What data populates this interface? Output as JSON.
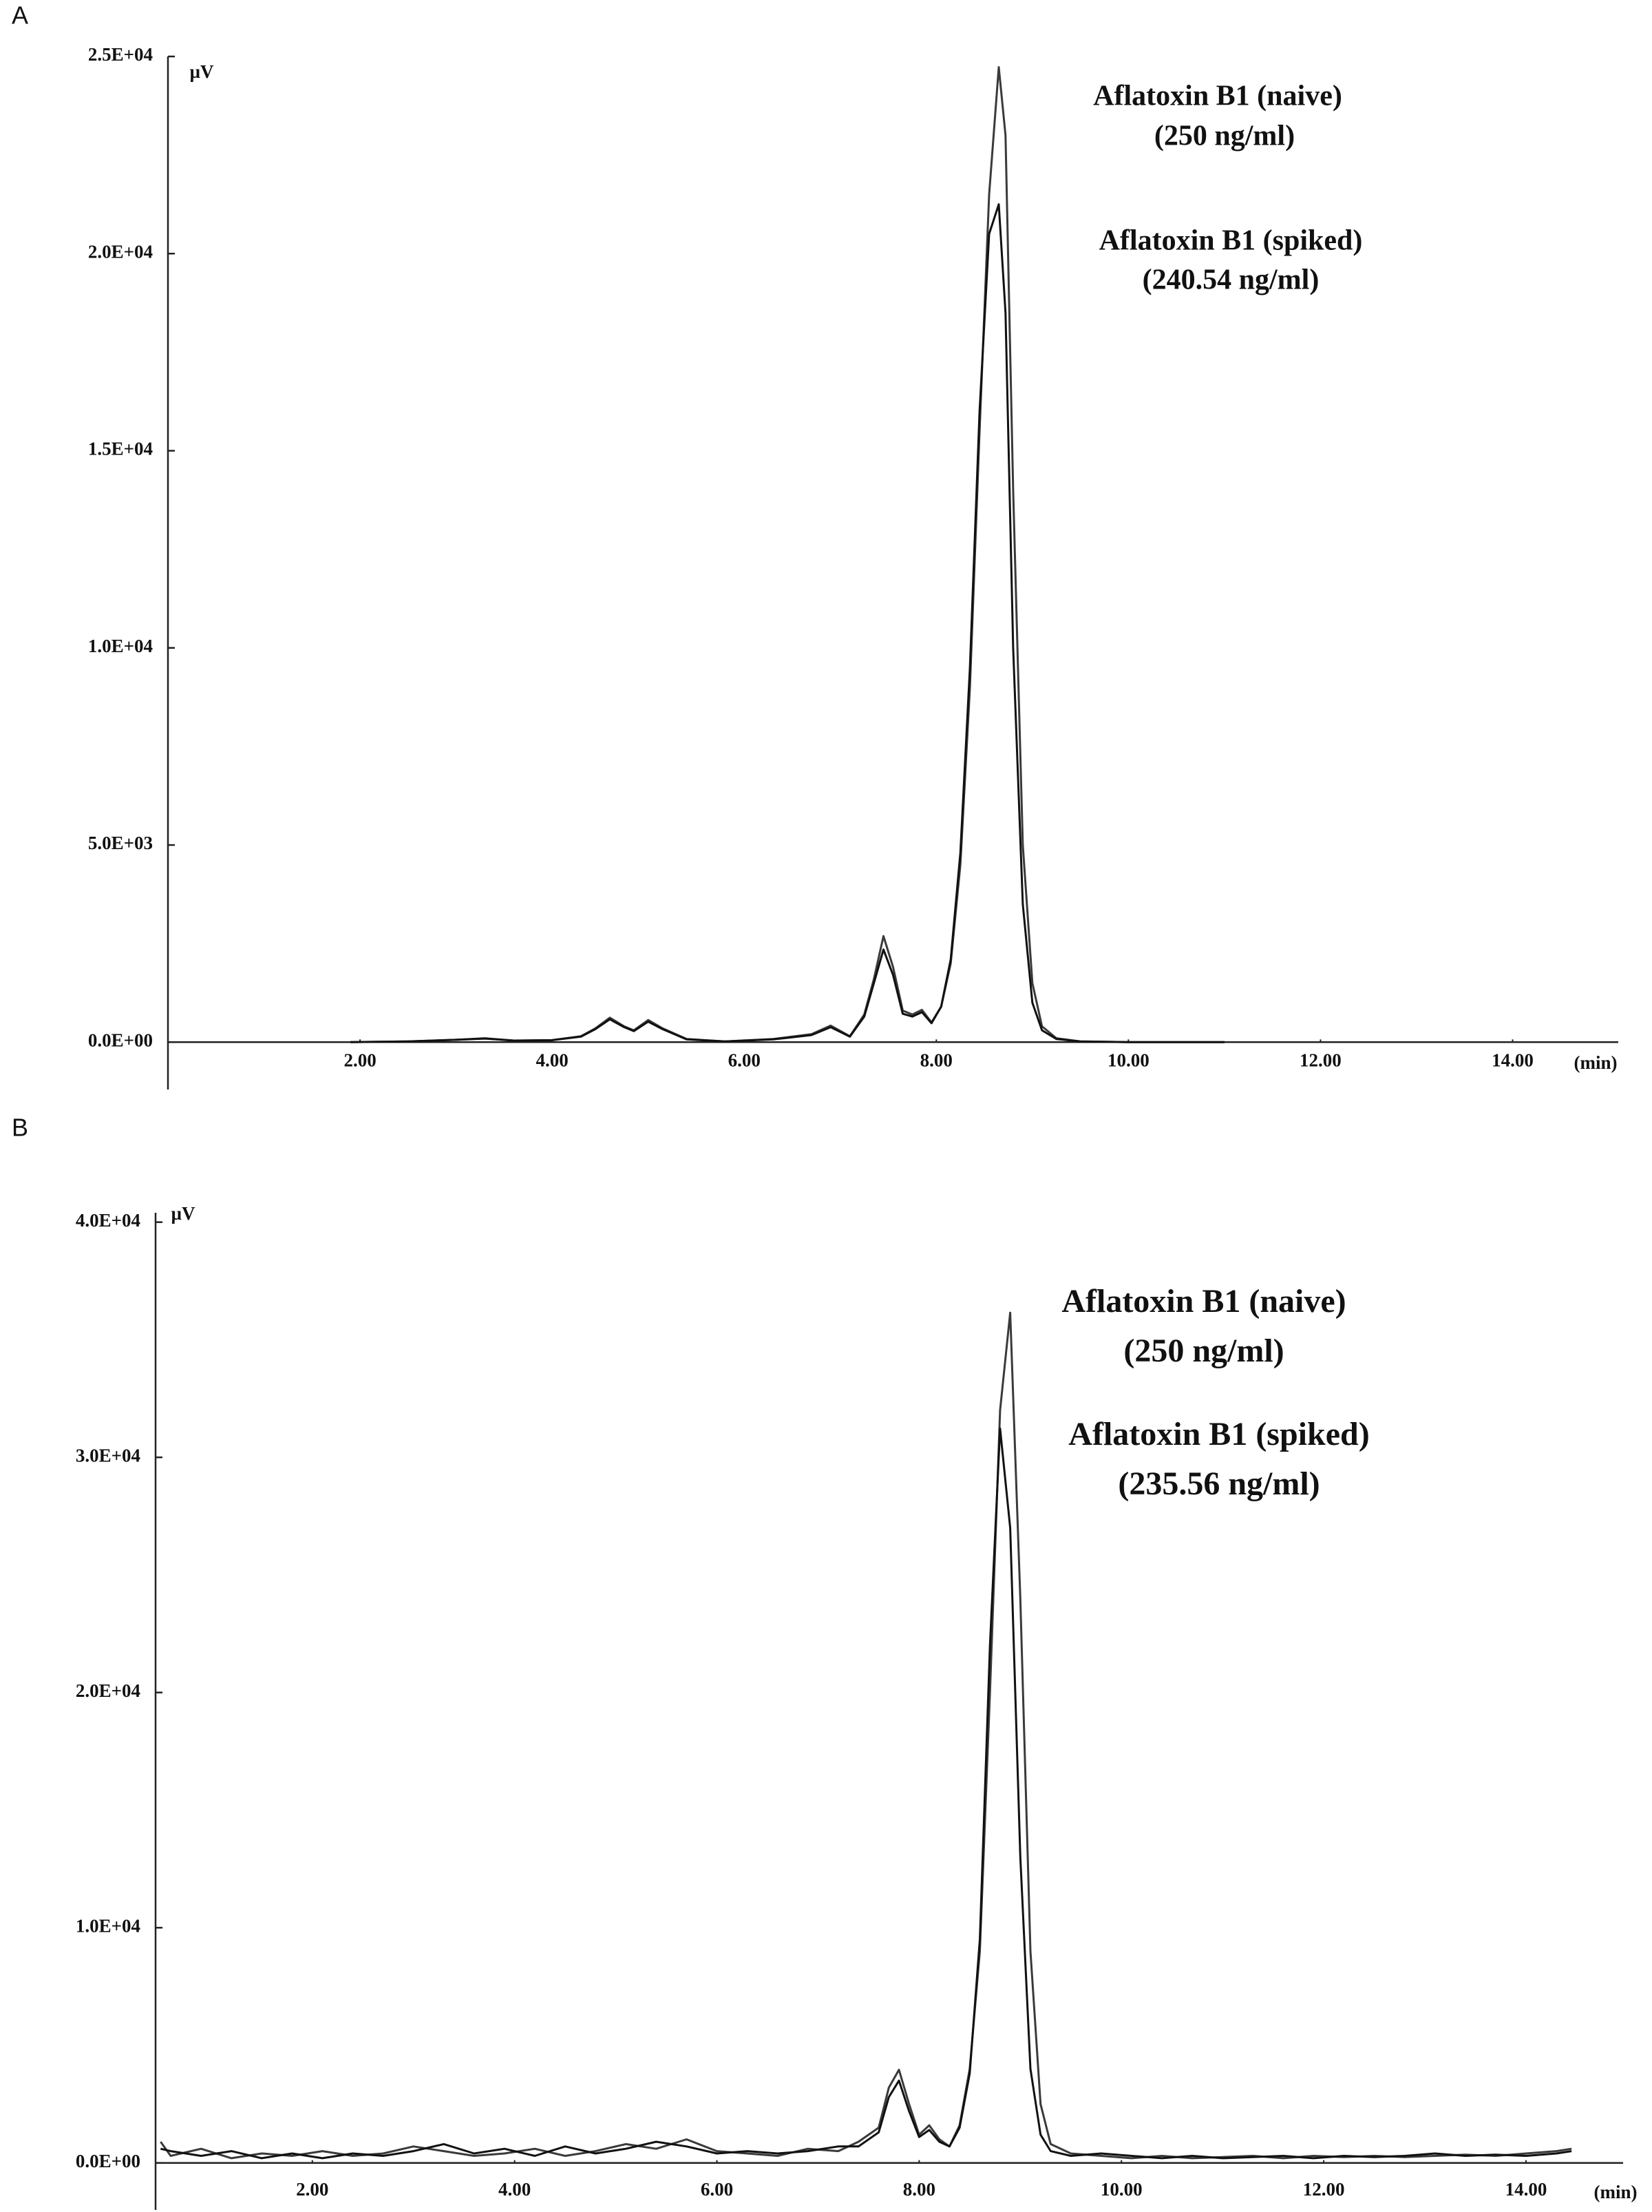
{
  "chart_data": [
    {
      "type": "line",
      "panel_label": "A",
      "ylabel": "µV",
      "xlabel": "(min)",
      "annotations": [
        "Aflatoxin B1 (naive)",
        "(250 ng/ml)",
        "Aflatoxin B1 (spiked)",
        "(240.54 ng/ml)"
      ],
      "xlim": [
        0,
        15.1
      ],
      "ylim": [
        -1200,
        25000
      ],
      "xticks": [
        {
          "value": 2,
          "label": "2.00"
        },
        {
          "value": 4,
          "label": "4.00"
        },
        {
          "value": 6,
          "label": "6.00"
        },
        {
          "value": 8,
          "label": "8.00"
        },
        {
          "value": 10,
          "label": "10.00"
        },
        {
          "value": 12,
          "label": "12.00"
        },
        {
          "value": 14,
          "label": "14.00"
        }
      ],
      "yticks": [
        {
          "value": 0,
          "label": "0.0E+00"
        },
        {
          "value": 5000,
          "label": "5.0E+03"
        },
        {
          "value": 10000,
          "label": "1.0E+04"
        },
        {
          "value": 15000,
          "label": "1.5E+04"
        },
        {
          "value": 20000,
          "label": "2.0E+04"
        },
        {
          "value": 25000,
          "label": "2.5E+04"
        }
      ],
      "x": [
        1.9,
        2.5,
        3.0,
        3.3,
        3.6,
        4.0,
        4.3,
        4.45,
        4.6,
        4.75,
        4.85,
        5.0,
        5.15,
        5.4,
        5.8,
        6.3,
        6.7,
        6.9,
        7.1,
        7.25,
        7.35,
        7.45,
        7.55,
        7.65,
        7.75,
        7.85,
        7.95,
        8.05,
        8.15,
        8.25,
        8.35,
        8.45,
        8.55,
        8.65,
        8.72,
        8.8,
        8.9,
        9.0,
        9.1,
        9.25,
        9.5,
        10.0,
        11.0
      ],
      "series": [
        {
          "color": "#3a3a3a",
          "values": [
            0,
            20,
            60,
            100,
            40,
            50,
            150,
            350,
            620,
            400,
            300,
            560,
            350,
            80,
            20,
            80,
            200,
            420,
            150,
            700,
            1600,
            2690,
            1900,
            800,
            700,
            820,
            500,
            900,
            2000,
            4500,
            9000,
            15500,
            21500,
            24730,
            23000,
            14000,
            5000,
            1500,
            400,
            100,
            20,
            0,
            0
          ]
        },
        {
          "color": "#111111",
          "values": [
            0,
            20,
            60,
            90,
            40,
            50,
            140,
            330,
            580,
            380,
            280,
            520,
            330,
            70,
            20,
            70,
            180,
            380,
            140,
            650,
            1500,
            2350,
            1700,
            720,
            650,
            760,
            480,
            900,
            2100,
            4800,
            9500,
            16000,
            20500,
            21250,
            18500,
            10000,
            3500,
            1000,
            300,
            80,
            20,
            0,
            0
          ]
        }
      ]
    },
    {
      "type": "line",
      "panel_label": "B",
      "ylabel": "µV",
      "xlabel": "(min)",
      "annotations": [
        "Aflatoxin B1 (naive)",
        "(250 ng/ml)",
        "Aflatoxin B1 (spiked)",
        "(235.56 ng/ml)"
      ],
      "xlim": [
        0.45,
        14.96
      ],
      "ylim": [
        -2000,
        40400
      ],
      "xticks": [
        {
          "value": 2,
          "label": "2.00"
        },
        {
          "value": 4,
          "label": "4.00"
        },
        {
          "value": 6,
          "label": "6.00"
        },
        {
          "value": 8,
          "label": "8.00"
        },
        {
          "value": 10,
          "label": "10.00"
        },
        {
          "value": 12,
          "label": "12.00"
        },
        {
          "value": 14,
          "label": "14.00"
        }
      ],
      "yticks": [
        {
          "value": 0,
          "label": "0.0E+00"
        },
        {
          "value": 10000,
          "label": "1.0E+04"
        },
        {
          "value": 20000,
          "label": "2.0E+04"
        },
        {
          "value": 30000,
          "label": "3.0E+04"
        },
        {
          "value": 40000,
          "label": "4.0E+04"
        }
      ],
      "x": [
        0.5,
        0.6,
        0.9,
        1.2,
        1.5,
        1.8,
        2.1,
        2.4,
        2.7,
        3.0,
        3.3,
        3.6,
        3.9,
        4.2,
        4.5,
        4.8,
        5.1,
        5.4,
        5.7,
        6.0,
        6.3,
        6.6,
        6.9,
        7.2,
        7.4,
        7.6,
        7.7,
        7.8,
        7.9,
        8.0,
        8.1,
        8.2,
        8.3,
        8.4,
        8.5,
        8.6,
        8.7,
        8.8,
        8.9,
        9.0,
        9.1,
        9.2,
        9.3,
        9.5,
        9.8,
        10.1,
        10.4,
        10.7,
        11.0,
        11.3,
        11.6,
        11.9,
        12.2,
        12.5,
        12.8,
        13.1,
        13.4,
        13.7,
        14.0,
        14.3,
        14.45
      ],
      "series": [
        {
          "color": "#3a3a3a",
          "values": [
            900,
            300,
            600,
            200,
            400,
            300,
            500,
            300,
            400,
            700,
            500,
            300,
            400,
            600,
            300,
            500,
            800,
            600,
            1000,
            500,
            400,
            300,
            600,
            500,
            900,
            1500,
            3200,
            3960,
            2500,
            1200,
            1600,
            1000,
            700,
            1600,
            4000,
            9000,
            20000,
            32000,
            36150,
            24000,
            9000,
            2500,
            800,
            400,
            300,
            200,
            300,
            200,
            250,
            300,
            200,
            300,
            250,
            300,
            250,
            300,
            350,
            300,
            400,
            500,
            600
          ]
        },
        {
          "color": "#111111",
          "values": [
            600,
            500,
            300,
            500,
            200,
            400,
            200,
            400,
            300,
            500,
            800,
            400,
            600,
            300,
            700,
            400,
            600,
            900,
            700,
            400,
            500,
            400,
            500,
            700,
            700,
            1300,
            2800,
            3500,
            2200,
            1100,
            1400,
            900,
            700,
            1500,
            3800,
            9500,
            22000,
            31230,
            27000,
            13000,
            4000,
            1200,
            500,
            300,
            400,
            300,
            200,
            300,
            200,
            250,
            300,
            200,
            300,
            250,
            300,
            400,
            300,
            350,
            300,
            400,
            500
          ]
        }
      ]
    }
  ]
}
